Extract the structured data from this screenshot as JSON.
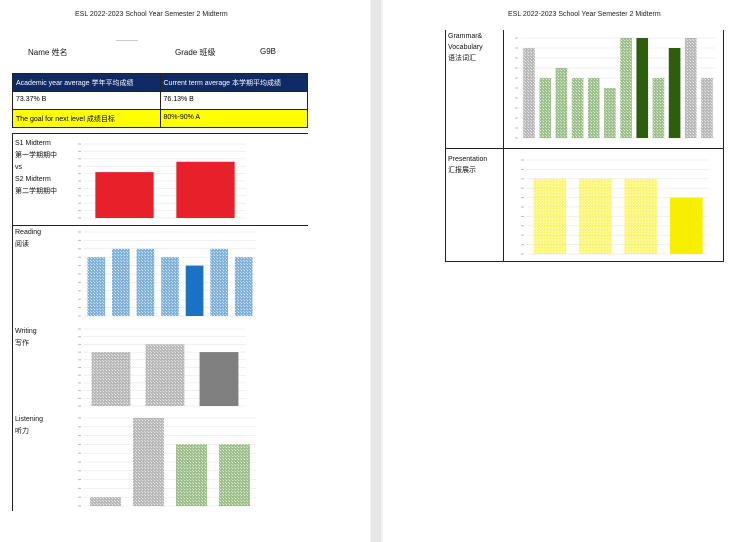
{
  "header": "ESL   2022-2023 School Year Semester 2 Midterm",
  "student": {
    "name_label": "Name 姓名",
    "name_value": "",
    "grade_label": "Grade 班级",
    "grade_value": "G9B"
  },
  "summary_table": {
    "head": [
      "Academic year average 学年平均成绩",
      "Current term average 本学期平均成绩"
    ],
    "values": [
      "73.37% B",
      "76.13% B"
    ],
    "goal": [
      "The goal for next level 成绩目标",
      "80%-90% A"
    ]
  },
  "sections": {
    "midterm": {
      "lines": [
        "S1 Midterm",
        "第一学期期中",
        "vs",
        "S2 Midterm",
        "第二学期期中"
      ]
    },
    "reading": {
      "lines": [
        "Reading",
        "阅读"
      ]
    },
    "writing": {
      "lines": [
        "Writing",
        "写作"
      ]
    },
    "listening": {
      "lines": [
        "Listening",
        "听力"
      ]
    },
    "grammar": {
      "lines": [
        "Grammar&",
        "Vocabulary",
        "语法词汇"
      ]
    },
    "presentation": {
      "lines": [
        "Presentation",
        "汇报展示"
      ]
    }
  },
  "colors": {
    "red": "#e8202a",
    "blue": "#1a73c2",
    "gray": "#808080",
    "green": "#2d5e0e",
    "yellow": "#f8ef00"
  },
  "chart_data": [
    {
      "id": "midterm",
      "type": "bar",
      "ylim": [
        0,
        100
      ],
      "values": [
        62,
        76
      ],
      "colors": [
        "#e8202a",
        "#e8202a"
      ],
      "patterned": [
        false,
        false
      ]
    },
    {
      "id": "reading",
      "type": "bar",
      "ylim": [
        0,
        10
      ],
      "values": [
        7,
        8,
        8,
        7,
        6,
        8,
        7
      ],
      "colors": [
        "#1a73c2",
        "#1a73c2",
        "#1a73c2",
        "#1a73c2",
        "#1a73c2",
        "#1a73c2",
        "#1a73c2"
      ],
      "patterned": [
        true,
        true,
        true,
        true,
        false,
        true,
        true
      ]
    },
    {
      "id": "writing",
      "type": "bar",
      "ylim": [
        0,
        10
      ],
      "values": [
        7,
        8,
        7
      ],
      "colors": [
        "#808080",
        "#808080",
        "#808080"
      ],
      "patterned": [
        true,
        true,
        false
      ]
    },
    {
      "id": "listening",
      "type": "bar",
      "ylim": [
        0,
        10
      ],
      "values": [
        1,
        10,
        7,
        7
      ],
      "colors": [
        "#808080",
        "#808080",
        "#4f8c2e",
        "#4f8c2e"
      ],
      "patterned": [
        true,
        true,
        true,
        true
      ]
    },
    {
      "id": "grammar",
      "type": "bar",
      "ylim": [
        0,
        10
      ],
      "values": [
        9,
        6,
        7,
        6,
        6,
        5,
        10,
        10,
        6,
        9,
        10,
        6
      ],
      "colors": [
        "#808080",
        "#4f8c2e",
        "#4f8c2e",
        "#4f8c2e",
        "#4f8c2e",
        "#4f8c2e",
        "#4f8c2e",
        "#2d5e0e",
        "#4f8c2e",
        "#2d5e0e",
        "#808080",
        "#808080"
      ],
      "patterned": [
        true,
        true,
        true,
        true,
        true,
        true,
        true,
        false,
        true,
        false,
        true,
        true
      ]
    },
    {
      "id": "presentation",
      "type": "bar",
      "ylim": [
        0,
        10
      ],
      "values": [
        8,
        8,
        8,
        6
      ],
      "colors": [
        "#f8ef00",
        "#f8ef00",
        "#f8ef00",
        "#f8ef00"
      ],
      "patterned": [
        true,
        true,
        true,
        false
      ]
    }
  ]
}
